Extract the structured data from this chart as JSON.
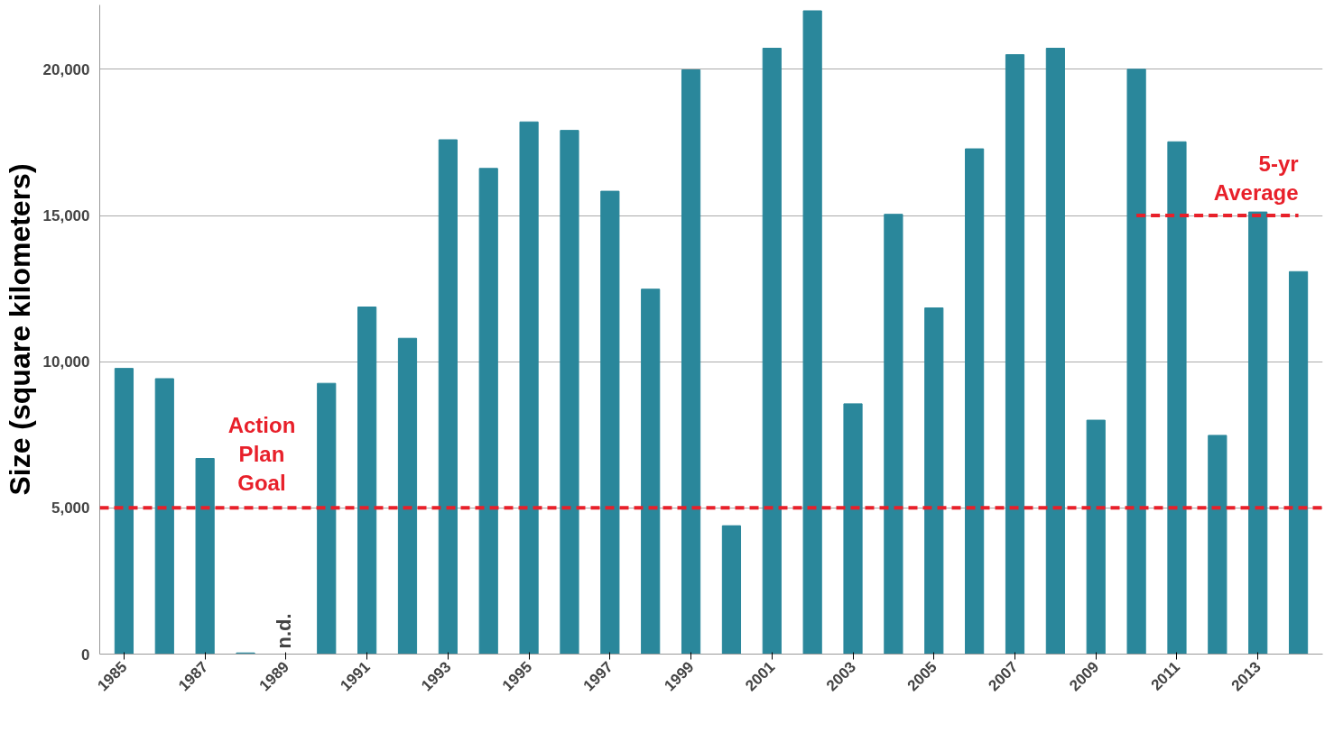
{
  "chart_data": {
    "type": "bar",
    "ylabel": "Size (square kilometers)",
    "categories": [
      "1985",
      null,
      "1987",
      null,
      "1989",
      null,
      "1991",
      null,
      "1993",
      null,
      "1995",
      null,
      "1997",
      null,
      "1999",
      null,
      "2001",
      null,
      "2003",
      null,
      "2005",
      null,
      "2007",
      null,
      "2009",
      null,
      "2011",
      null,
      "2013",
      null
    ],
    "series": [
      {
        "color": "#2a879b",
        "values": [
          9770,
          9420,
          6690,
          40,
          null,
          9260,
          11870,
          10800,
          17590,
          16610,
          18200,
          17910,
          15830,
          12480,
          19980,
          4390,
          20720,
          22000,
          8560,
          15040,
          11840,
          17280,
          20500,
          20720,
          8000,
          20000,
          17520,
          7480,
          15120,
          13080
        ]
      },
      {
        "type": "line",
        "name": "5-yr Average",
        "color": "#e8202a",
        "line_style": "dashed",
        "values": [
          null,
          null,
          null,
          null,
          null,
          null,
          null,
          null,
          null,
          null,
          null,
          null,
          null,
          null,
          null,
          null,
          null,
          null,
          null,
          null,
          null,
          null,
          null,
          null,
          null,
          15000,
          15000,
          15000,
          15000,
          15000
        ]
      }
    ],
    "ref_lines": [
      {
        "axis": "y",
        "value": 5000,
        "label": "Action Plan Goal",
        "color": "#e8202a",
        "line_style": "dashed"
      }
    ],
    "annotations": [
      "n.d."
    ],
    "ylim": [
      0,
      22200
    ],
    "yticks": [
      0,
      {
        "value": 5000,
        "label": "5,000"
      },
      {
        "value": 10000,
        "label": "10,000"
      },
      {
        "value": 15000,
        "label": "15,000"
      },
      {
        "value": 20000,
        "label": "20,000"
      }
    ],
    "grid": "y"
  }
}
